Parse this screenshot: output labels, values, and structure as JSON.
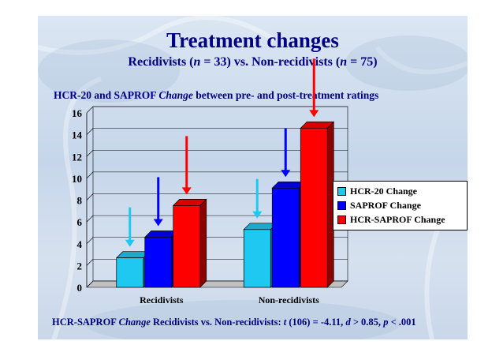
{
  "slide": {
    "title": "Treatment changes",
    "subtitle_parts": [
      "Recidivists (",
      "n",
      " = 33) vs. Non-recidivists (",
      "n",
      " = 75)"
    ],
    "heading_parts": [
      "HCR-20 and SAPROF ",
      "Change",
      " between pre- and post-treatment ratings"
    ],
    "footer_parts": [
      "HCR-SAPROF ",
      "Change",
      " Recidivists vs. Non-recidivists: ",
      "t",
      " (106) = -4.11, ",
      "d",
      " > 0.85, ",
      "p",
      " < .001"
    ],
    "text_color": "#000080"
  },
  "chart_data": {
    "type": "bar",
    "categories": [
      "Recidivists",
      "Non-recidivists"
    ],
    "series": [
      {
        "name": "HCR-20 Change",
        "values": [
          2.7,
          5.3
        ],
        "color": "#1ec8f0"
      },
      {
        "name": "SAPROF Change",
        "values": [
          4.6,
          9.1
        ],
        "color": "#0000ff"
      },
      {
        "name": "HCR-SAPROF Change",
        "values": [
          7.5,
          14.6
        ],
        "color": "#ff0000"
      }
    ],
    "ylim": [
      0,
      16
    ],
    "yticks": [
      0,
      2,
      4,
      6,
      8,
      10,
      12,
      14,
      16
    ],
    "three_d": true,
    "grid": true,
    "legend_position": "right",
    "annotations": "increase arrows above each bar"
  }
}
